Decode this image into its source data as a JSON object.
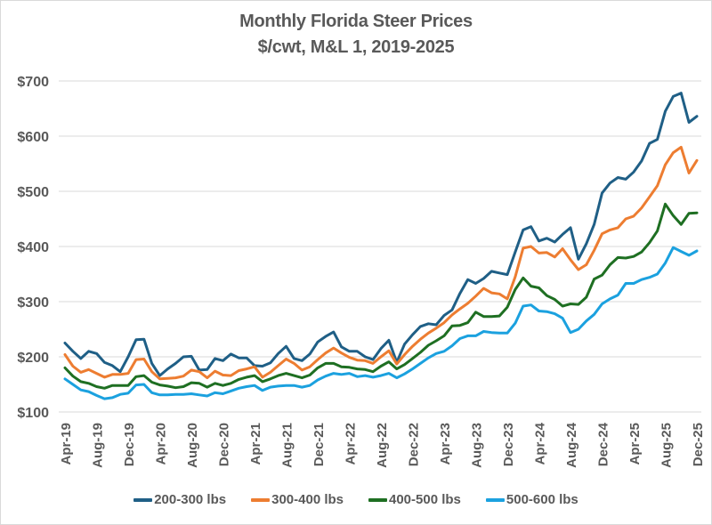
{
  "chart_data": {
    "type": "line",
    "title": "Monthly Florida Steer Prices",
    "subtitle": "$/cwt, M&L 1, 2019-2025",
    "xlabel": "",
    "ylabel": "",
    "ylim": [
      100,
      700
    ],
    "y_ticks": [
      100,
      200,
      300,
      400,
      500,
      600,
      700
    ],
    "y_tick_labels": [
      "$100",
      "$200",
      "$300",
      "$400",
      "$500",
      "$600",
      "$700"
    ],
    "grid": "horizontal",
    "legend_position": "bottom",
    "x_start": "Apr-19",
    "x_tick_labels": [
      "Apr-19",
      "Aug-19",
      "Dec-19",
      "Apr-20",
      "Aug-20",
      "Dec-20",
      "Apr-21",
      "Aug-21",
      "Dec-21",
      "Apr-22",
      "Aug-22",
      "Dec-22",
      "Apr-23",
      "Aug-23",
      "Dec-23",
      "Apr-24",
      "Aug-24",
      "Dec-24",
      "Apr-25",
      "Aug-25",
      "Dec-25"
    ],
    "x_tick_interval_months": 4,
    "series": [
      {
        "name": "200-300 lbs",
        "color": "#1f5f86",
        "values": [
          225,
          210,
          197,
          210,
          206,
          190,
          184,
          173,
          200,
          231,
          232,
          188,
          166,
          178,
          188,
          200,
          201,
          176,
          177,
          197,
          193,
          205,
          198,
          198,
          184,
          183,
          189,
          206,
          219,
          197,
          193,
          205,
          227,
          237,
          245,
          218,
          210,
          210,
          200,
          195,
          215,
          230,
          190,
          223,
          240,
          255,
          260,
          258,
          275,
          285,
          315,
          340,
          333,
          342,
          355,
          352,
          349,
          390,
          430,
          436,
          410,
          415,
          408,
          422,
          434,
          377,
          405,
          440,
          497,
          515,
          525,
          522,
          535,
          555,
          587,
          594,
          645,
          672,
          678,
          625,
          636
        ]
      },
      {
        "name": "300-400 lbs",
        "color": "#ed7d31",
        "values": [
          204,
          183,
          172,
          177,
          170,
          163,
          168,
          168,
          170,
          195,
          196,
          173,
          160,
          161,
          162,
          165,
          176,
          173,
          162,
          174,
          167,
          166,
          175,
          178,
          182,
          163,
          172,
          184,
          196,
          188,
          176,
          182,
          195,
          207,
          216,
          207,
          199,
          194,
          193,
          188,
          200,
          211,
          187,
          204,
          219,
          232,
          243,
          252,
          262,
          276,
          287,
          297,
          310,
          324,
          316,
          314,
          305,
          345,
          397,
          400,
          388,
          389,
          381,
          396,
          376,
          358,
          367,
          393,
          423,
          430,
          434,
          450,
          455,
          470,
          490,
          510,
          548,
          570,
          580,
          533,
          556
        ]
      },
      {
        "name": "400-500 lbs",
        "color": "#1e6f22",
        "values": [
          180,
          165,
          155,
          152,
          146,
          143,
          148,
          148,
          148,
          164,
          166,
          154,
          149,
          147,
          144,
          146,
          153,
          152,
          145,
          152,
          148,
          152,
          159,
          163,
          166,
          155,
          160,
          166,
          170,
          166,
          162,
          167,
          180,
          188,
          188,
          182,
          181,
          178,
          177,
          173,
          183,
          191,
          178,
          186,
          197,
          208,
          221,
          229,
          238,
          256,
          257,
          262,
          281,
          273,
          273,
          274,
          290,
          322,
          343,
          328,
          325,
          311,
          304,
          292,
          296,
          295,
          308,
          341,
          348,
          367,
          380,
          379,
          382,
          390,
          407,
          428,
          477,
          456,
          440,
          460,
          461
        ]
      },
      {
        "name": "500-600 lbs",
        "color": "#1ba1df",
        "values": [
          160,
          150,
          140,
          137,
          130,
          124,
          126,
          132,
          134,
          149,
          150,
          135,
          131,
          131,
          132,
          132,
          133,
          131,
          129,
          135,
          133,
          138,
          143,
          146,
          148,
          139,
          145,
          147,
          148,
          148,
          145,
          148,
          158,
          165,
          170,
          168,
          170,
          164,
          166,
          163,
          166,
          170,
          162,
          169,
          178,
          188,
          198,
          206,
          210,
          220,
          233,
          238,
          238,
          246,
          244,
          243,
          243,
          261,
          292,
          294,
          283,
          282,
          278,
          270,
          244,
          250,
          265,
          277,
          296,
          305,
          312,
          333,
          333,
          340,
          344,
          350,
          370,
          398,
          391,
          384,
          392
        ]
      }
    ]
  }
}
